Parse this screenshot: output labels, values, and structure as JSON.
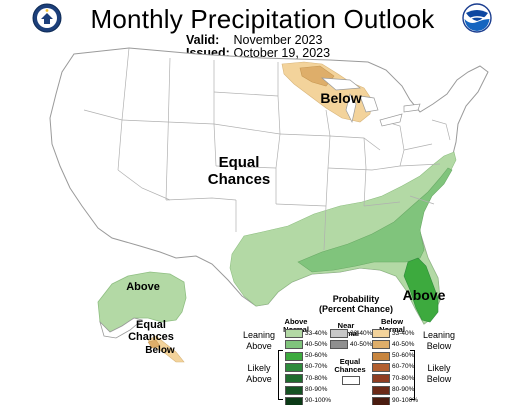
{
  "header": {
    "title": "Monthly Precipitation Outlook",
    "valid_label": "Valid:",
    "valid_value": "November 2023",
    "issued_label": "Issued:",
    "issued_value": "October 19, 2023"
  },
  "map": {
    "labels": {
      "equal_chances_conus_1": "Equal",
      "equal_chances_conus_2": "Chances",
      "below_great_lakes": "Below",
      "above_florida": "Above",
      "above_alaska": "Above",
      "equal_chances_ak_1": "Equal",
      "equal_chances_ak_2": "Chances",
      "below_ak_southeast": "Below"
    },
    "colors": {
      "above_33_40": "#b3d9a5",
      "above_40_50": "#80c47c",
      "above_50_60": "#3daa3e",
      "below_33_40": "#f3d39b",
      "below_40_50": "#deae6a",
      "border": "#9a9a9a",
      "state_line": "#b0b0b0"
    }
  },
  "legend": {
    "title_1": "Probability",
    "title_2": "(Percent Chance)",
    "headers": {
      "above_1": "Above",
      "above_2": "Normal",
      "near_1": "Near",
      "near_2": "Normal",
      "below_1": "Below",
      "below_2": "Normal"
    },
    "side": {
      "leaning_above_1": "Leaning",
      "leaning_above_2": "Above",
      "likely_above_1": "Likely",
      "likely_above_2": "Above",
      "leaning_below_1": "Leaning",
      "leaning_below_2": "Below",
      "likely_below_1": "Likely",
      "likely_below_2": "Below",
      "equal_1": "Equal",
      "equal_2": "Chances"
    },
    "above": [
      {
        "label": "33-40%",
        "color": "#b3d9a5"
      },
      {
        "label": "40-50%",
        "color": "#80c47c"
      },
      {
        "label": "50-60%",
        "color": "#3daa3e"
      },
      {
        "label": "60-70%",
        "color": "#2e8b3c"
      },
      {
        "label": "70-80%",
        "color": "#1f6b2e"
      },
      {
        "label": "80-90%",
        "color": "#155223"
      },
      {
        "label": "90-100%",
        "color": "#0b3a16"
      }
    ],
    "near": [
      {
        "label": "33-40%",
        "color": "#c8c8c8"
      },
      {
        "label": "40-50%",
        "color": "#8f8f8f"
      }
    ],
    "below": [
      {
        "label": "33-40%",
        "color": "#f3d39b"
      },
      {
        "label": "40-50%",
        "color": "#deae6a"
      },
      {
        "label": "50-60%",
        "color": "#c7853f"
      },
      {
        "label": "60-70%",
        "color": "#b25f30"
      },
      {
        "label": "70-80%",
        "color": "#8f3d22"
      },
      {
        "label": "80-90%",
        "color": "#6b2a18"
      },
      {
        "label": "90-100%",
        "color": "#4a1c10"
      }
    ],
    "equal_color": "#ffffff"
  }
}
